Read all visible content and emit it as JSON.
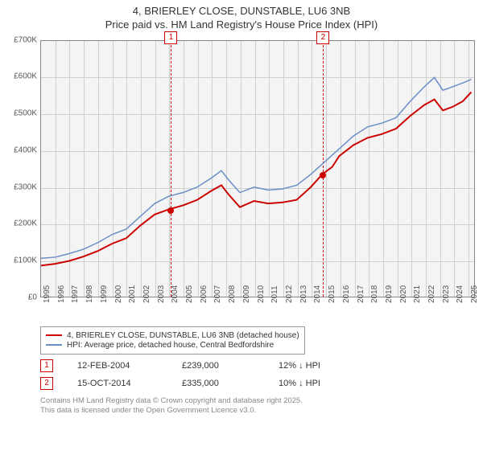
{
  "title_line1": "4, BRIERLEY CLOSE, DUNSTABLE, LU6 3NB",
  "title_line2": "Price paid vs. HM Land Registry's House Price Index (HPI)",
  "chart": {
    "type": "line",
    "background_color": "#f4f4f4",
    "grid_color": "#d0d0d0",
    "border_color": "#888888",
    "x_min": 1995,
    "x_max": 2025.5,
    "x_ticks": [
      1995,
      1996,
      1997,
      1998,
      1999,
      2000,
      2001,
      2002,
      2003,
      2004,
      2005,
      2006,
      2007,
      2008,
      2009,
      2010,
      2011,
      2012,
      2013,
      2014,
      2015,
      2016,
      2017,
      2018,
      2019,
      2020,
      2021,
      2022,
      2023,
      2024,
      2025
    ],
    "y_min": 0,
    "y_max": 700000,
    "y_ticks": [
      0,
      100000,
      200000,
      300000,
      400000,
      500000,
      600000,
      700000
    ],
    "y_tick_labels": [
      "£0",
      "£100K",
      "£200K",
      "£300K",
      "£400K",
      "£500K",
      "£600K",
      "£700K"
    ],
    "series": [
      {
        "name": "price_paid",
        "label": "4, BRIERLEY CLOSE, DUNSTABLE, LU6 3NB (detached house)",
        "color": "#cc0000",
        "width": 2,
        "data": [
          [
            1995,
            85000
          ],
          [
            1996,
            90000
          ],
          [
            1997,
            98000
          ],
          [
            1998,
            110000
          ],
          [
            1999,
            125000
          ],
          [
            2000,
            145000
          ],
          [
            2001,
            160000
          ],
          [
            2002,
            195000
          ],
          [
            2003,
            225000
          ],
          [
            2004,
            239000
          ],
          [
            2005,
            250000
          ],
          [
            2006,
            265000
          ],
          [
            2007,
            290000
          ],
          [
            2007.7,
            305000
          ],
          [
            2008.2,
            280000
          ],
          [
            2009,
            245000
          ],
          [
            2010,
            262000
          ],
          [
            2011,
            255000
          ],
          [
            2012,
            258000
          ],
          [
            2013,
            265000
          ],
          [
            2014,
            300000
          ],
          [
            2014.8,
            335000
          ],
          [
            2015.5,
            355000
          ],
          [
            2016,
            385000
          ],
          [
            2017,
            415000
          ],
          [
            2018,
            435000
          ],
          [
            2019,
            445000
          ],
          [
            2020,
            460000
          ],
          [
            2021,
            495000
          ],
          [
            2022,
            525000
          ],
          [
            2022.7,
            540000
          ],
          [
            2023.3,
            510000
          ],
          [
            2024,
            520000
          ],
          [
            2024.7,
            535000
          ],
          [
            2025.3,
            560000
          ]
        ]
      },
      {
        "name": "hpi",
        "label": "HPI: Average price, detached house, Central Bedfordshire",
        "color": "#6a8fc7",
        "width": 1.5,
        "data": [
          [
            1995,
            105000
          ],
          [
            1996,
            108000
          ],
          [
            1997,
            118000
          ],
          [
            1998,
            130000
          ],
          [
            1999,
            148000
          ],
          [
            2000,
            170000
          ],
          [
            2001,
            185000
          ],
          [
            2002,
            220000
          ],
          [
            2003,
            255000
          ],
          [
            2004,
            275000
          ],
          [
            2005,
            285000
          ],
          [
            2006,
            300000
          ],
          [
            2007,
            325000
          ],
          [
            2007.7,
            345000
          ],
          [
            2008.2,
            320000
          ],
          [
            2009,
            285000
          ],
          [
            2010,
            300000
          ],
          [
            2011,
            292000
          ],
          [
            2012,
            295000
          ],
          [
            2013,
            305000
          ],
          [
            2014,
            335000
          ],
          [
            2015,
            370000
          ],
          [
            2016,
            405000
          ],
          [
            2017,
            440000
          ],
          [
            2018,
            465000
          ],
          [
            2019,
            475000
          ],
          [
            2020,
            490000
          ],
          [
            2021,
            535000
          ],
          [
            2022,
            575000
          ],
          [
            2022.7,
            600000
          ],
          [
            2023.3,
            565000
          ],
          [
            2024,
            575000
          ],
          [
            2024.7,
            585000
          ],
          [
            2025.3,
            595000
          ]
        ]
      }
    ],
    "markers": [
      {
        "id": "1",
        "x": 2004.12,
        "point_y": 239000,
        "point_color": "#cc0000"
      },
      {
        "id": "2",
        "x": 2014.79,
        "point_y": 335000,
        "point_color": "#cc0000"
      }
    ],
    "marker_line_color": "#cc0000"
  },
  "legend": {
    "border_color": "#999999",
    "items": [
      {
        "color": "#cc0000",
        "label": "4, BRIERLEY CLOSE, DUNSTABLE, LU6 3NB (detached house)"
      },
      {
        "color": "#6a8fc7",
        "label": "HPI: Average price, detached house, Central Bedfordshire"
      }
    ]
  },
  "sales": [
    {
      "id": "1",
      "date": "12-FEB-2004",
      "price": "£239,000",
      "delta": "12% ↓ HPI"
    },
    {
      "id": "2",
      "date": "15-OCT-2014",
      "price": "£335,000",
      "delta": "10% ↓ HPI"
    }
  ],
  "footer_line1": "Contains HM Land Registry data © Crown copyright and database right 2025.",
  "footer_line2": "This data is licensed under the Open Government Licence v3.0."
}
